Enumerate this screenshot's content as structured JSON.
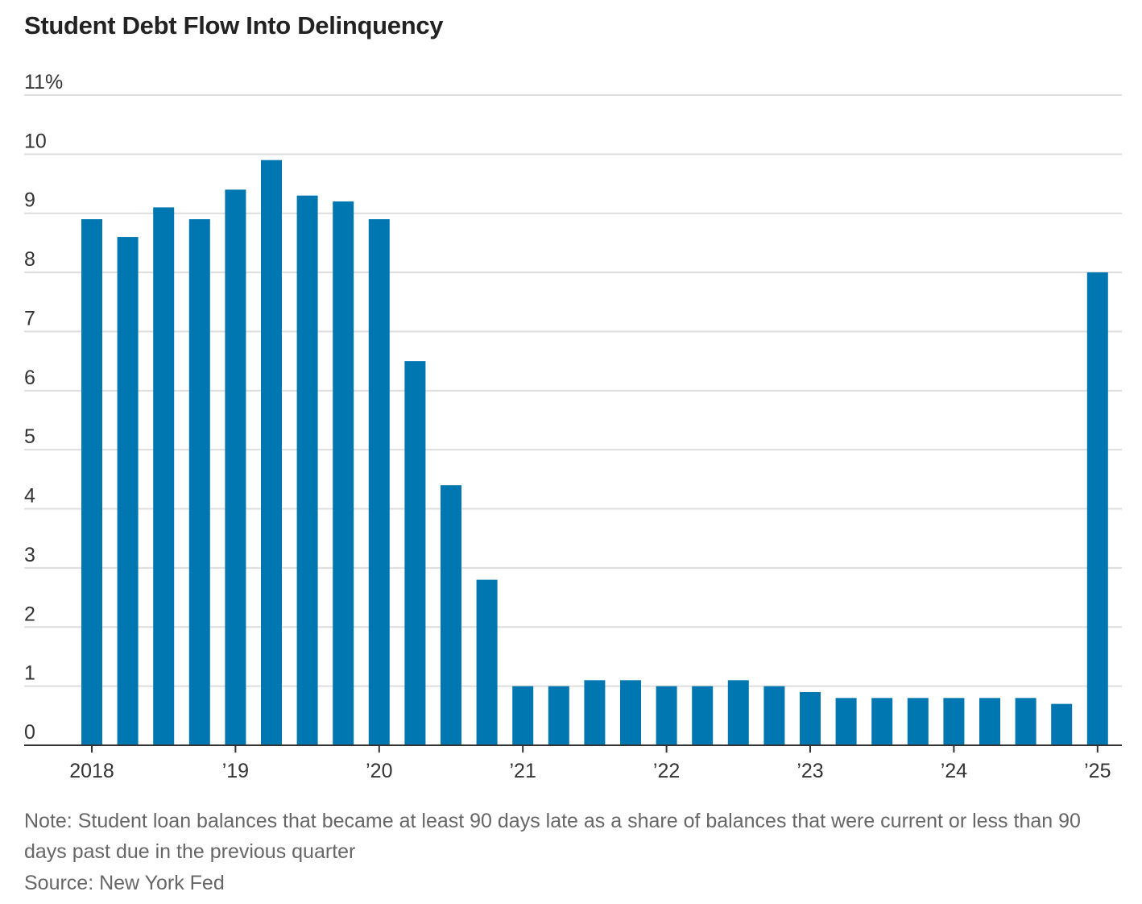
{
  "chart_data": {
    "type": "bar",
    "title": "Student Debt Flow Into Delinquency",
    "xlabel": "",
    "ylabel": "",
    "ylim": [
      0,
      11
    ],
    "yticks": [
      "0",
      "1",
      "2",
      "3",
      "4",
      "5",
      "6",
      "7",
      "8",
      "9",
      "10",
      "11%"
    ],
    "xticks": [
      {
        "index": 0,
        "label": "2018"
      },
      {
        "index": 4,
        "label": "’19"
      },
      {
        "index": 8,
        "label": "’20"
      },
      {
        "index": 12,
        "label": "’21"
      },
      {
        "index": 16,
        "label": "’22"
      },
      {
        "index": 20,
        "label": "’23"
      },
      {
        "index": 24,
        "label": "’24"
      },
      {
        "index": 28,
        "label": "’25"
      }
    ],
    "grid": true,
    "legend": "none",
    "bar_color": "#0077b0",
    "categories": [
      "2018 Q1",
      "2018 Q2",
      "2018 Q3",
      "2018 Q4",
      "2019 Q1",
      "2019 Q2",
      "2019 Q3",
      "2019 Q4",
      "2020 Q1",
      "2020 Q2",
      "2020 Q3",
      "2020 Q4",
      "2021 Q1",
      "2021 Q2",
      "2021 Q3",
      "2021 Q4",
      "2022 Q1",
      "2022 Q2",
      "2022 Q3",
      "2022 Q4",
      "2023 Q1",
      "2023 Q2",
      "2023 Q3",
      "2023 Q4",
      "2024 Q1",
      "2024 Q2",
      "2024 Q3",
      "2024 Q4",
      "2025 Q1"
    ],
    "values": [
      8.9,
      8.6,
      9.1,
      8.9,
      9.4,
      9.9,
      9.3,
      9.2,
      8.9,
      6.5,
      4.4,
      2.8,
      1.0,
      1.0,
      1.1,
      1.1,
      1.0,
      1.0,
      1.1,
      1.0,
      0.9,
      0.8,
      0.8,
      0.8,
      0.8,
      0.8,
      0.8,
      0.7,
      8.0
    ]
  },
  "note": "Note: Student loan balances that became at least 90 days late as a share of balances that were current or less than 90 days past due in the previous quarter",
  "source": "Source: New York Fed"
}
